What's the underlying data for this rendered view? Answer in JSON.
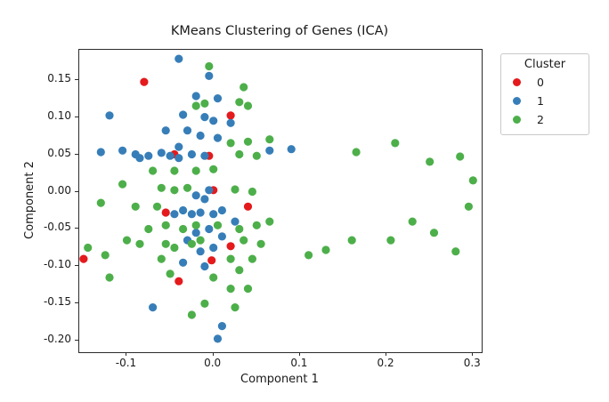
{
  "chart_data": {
    "type": "scatter",
    "title": "KMeans Clustering of Genes (ICA)",
    "xlabel": "Component 1",
    "ylabel": "Component 2",
    "xlim": [
      -0.155,
      0.31
    ],
    "ylim": [
      -0.215,
      0.19
    ],
    "grid": false,
    "legend_title": "Cluster",
    "legend_position": "upper right, outside plot",
    "xticks": {
      "values": [
        -0.1,
        0.0,
        0.1,
        0.2,
        0.3
      ],
      "labels": [
        "-0.1",
        "0.0",
        "0.1",
        "0.2",
        "0.3"
      ]
    },
    "yticks": {
      "values": [
        0.15,
        0.1,
        0.05,
        0.0,
        -0.05,
        -0.1,
        -0.15,
        -0.2
      ],
      "labels": [
        "0.15",
        "0.10",
        "0.05",
        "0.00",
        "-0.05",
        "-0.10",
        "-0.15",
        "-0.20"
      ]
    },
    "series": [
      {
        "name": "0",
        "color": "#e41a1c",
        "points": [
          [
            -0.08,
            0.147
          ],
          [
            0.02,
            0.102
          ],
          [
            -0.045,
            0.05
          ],
          [
            -0.005,
            0.048
          ],
          [
            0.0,
            0.002
          ],
          [
            -0.055,
            -0.028
          ],
          [
            0.04,
            -0.02
          ],
          [
            0.02,
            -0.073
          ],
          [
            -0.002,
            -0.092
          ],
          [
            -0.04,
            -0.12
          ],
          [
            -0.15,
            -0.09
          ]
        ]
      },
      {
        "name": "1",
        "color": "#377eb8",
        "points": [
          [
            -0.04,
            0.178
          ],
          [
            -0.005,
            0.155
          ],
          [
            -0.12,
            0.102
          ],
          [
            -0.02,
            0.128
          ],
          [
            0.005,
            0.125
          ],
          [
            -0.035,
            0.103
          ],
          [
            -0.01,
            0.1
          ],
          [
            0.0,
            0.095
          ],
          [
            0.02,
            0.092
          ],
          [
            -0.055,
            0.082
          ],
          [
            -0.03,
            0.082
          ],
          [
            -0.015,
            0.075
          ],
          [
            0.005,
            0.072
          ],
          [
            -0.13,
            0.053
          ],
          [
            -0.105,
            0.055
          ],
          [
            -0.09,
            0.05
          ],
          [
            -0.085,
            0.045
          ],
          [
            -0.075,
            0.048
          ],
          [
            -0.06,
            0.052
          ],
          [
            -0.05,
            0.048
          ],
          [
            -0.04,
            0.06
          ],
          [
            -0.04,
            0.045
          ],
          [
            -0.025,
            0.05
          ],
          [
            -0.01,
            0.048
          ],
          [
            0.09,
            0.057
          ],
          [
            0.065,
            0.055
          ],
          [
            -0.005,
            0.002
          ],
          [
            -0.02,
            -0.005
          ],
          [
            -0.01,
            -0.01
          ],
          [
            -0.035,
            -0.025
          ],
          [
            -0.045,
            -0.03
          ],
          [
            -0.025,
            -0.03
          ],
          [
            -0.015,
            -0.028
          ],
          [
            0.0,
            -0.03
          ],
          [
            0.01,
            -0.025
          ],
          [
            0.025,
            -0.04
          ],
          [
            -0.005,
            -0.05
          ],
          [
            -0.02,
            -0.055
          ],
          [
            0.01,
            -0.06
          ],
          [
            -0.03,
            -0.065
          ],
          [
            0.0,
            -0.075
          ],
          [
            -0.015,
            -0.08
          ],
          [
            -0.035,
            -0.095
          ],
          [
            -0.01,
            -0.1
          ],
          [
            -0.07,
            -0.155
          ],
          [
            0.01,
            -0.18
          ],
          [
            0.005,
            -0.197
          ]
        ]
      },
      {
        "name": "2",
        "color": "#4daf4a",
        "points": [
          [
            -0.005,
            0.168
          ],
          [
            0.035,
            0.14
          ],
          [
            0.03,
            0.12
          ],
          [
            -0.02,
            0.115
          ],
          [
            0.04,
            0.115
          ],
          [
            -0.01,
            0.118
          ],
          [
            0.02,
            0.065
          ],
          [
            0.04,
            0.067
          ],
          [
            0.065,
            0.07
          ],
          [
            0.03,
            0.05
          ],
          [
            0.05,
            0.048
          ],
          [
            -0.07,
            0.028
          ],
          [
            -0.045,
            0.028
          ],
          [
            -0.02,
            0.028
          ],
          [
            0.0,
            0.03
          ],
          [
            -0.105,
            0.01
          ],
          [
            -0.06,
            0.005
          ],
          [
            -0.045,
            0.002
          ],
          [
            -0.03,
            0.005
          ],
          [
            0.025,
            0.003
          ],
          [
            0.045,
            0.0
          ],
          [
            -0.13,
            -0.015
          ],
          [
            -0.09,
            -0.02
          ],
          [
            -0.065,
            -0.02
          ],
          [
            -0.055,
            -0.045
          ],
          [
            -0.075,
            -0.05
          ],
          [
            -0.035,
            -0.05
          ],
          [
            -0.02,
            -0.045
          ],
          [
            0.005,
            -0.045
          ],
          [
            0.03,
            -0.05
          ],
          [
            0.05,
            -0.045
          ],
          [
            0.065,
            -0.04
          ],
          [
            -0.1,
            -0.065
          ],
          [
            -0.085,
            -0.07
          ],
          [
            -0.055,
            -0.07
          ],
          [
            -0.045,
            -0.075
          ],
          [
            -0.025,
            -0.07
          ],
          [
            -0.015,
            -0.065
          ],
          [
            0.035,
            -0.065
          ],
          [
            0.055,
            -0.07
          ],
          [
            -0.125,
            -0.085
          ],
          [
            -0.145,
            -0.075
          ],
          [
            -0.06,
            -0.09
          ],
          [
            0.02,
            -0.09
          ],
          [
            0.045,
            -0.09
          ],
          [
            0.03,
            -0.105
          ],
          [
            -0.12,
            -0.115
          ],
          [
            -0.05,
            -0.11
          ],
          [
            0.0,
            -0.115
          ],
          [
            0.02,
            -0.13
          ],
          [
            0.04,
            -0.13
          ],
          [
            -0.01,
            -0.15
          ],
          [
            0.025,
            -0.155
          ],
          [
            -0.025,
            -0.165
          ],
          [
            0.11,
            -0.085
          ],
          [
            0.13,
            -0.078
          ],
          [
            0.165,
            0.053
          ],
          [
            0.21,
            0.065
          ],
          [
            0.16,
            -0.065
          ],
          [
            0.205,
            -0.065
          ],
          [
            0.23,
            -0.04
          ],
          [
            0.25,
            0.04
          ],
          [
            0.285,
            0.047
          ],
          [
            0.28,
            -0.08
          ],
          [
            0.3,
            0.015
          ],
          [
            0.255,
            -0.055
          ],
          [
            0.295,
            -0.02
          ]
        ]
      }
    ]
  }
}
